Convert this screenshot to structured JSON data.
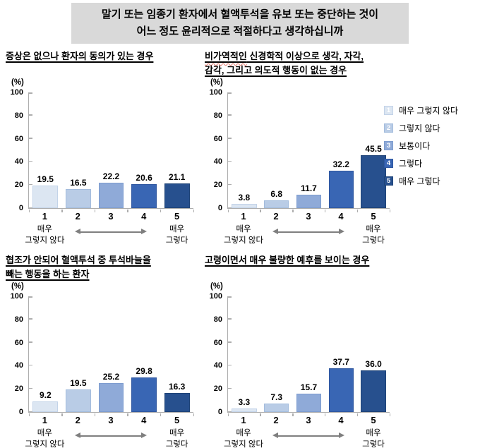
{
  "page_title": {
    "lines": [
      "말기 또는 임종기 환자에서 혈액투석을 유보 또는 중단하는 것이",
      "어느 정도 윤리적으로 적절하다고 생각하십니까"
    ]
  },
  "axis_meta": {
    "unit": "(%)",
    "ticks": [
      0,
      20,
      40,
      60,
      80,
      100
    ],
    "ymax": 100,
    "categories": [
      "1",
      "2",
      "3",
      "4",
      "5"
    ],
    "left_anchor_lines": [
      "매우",
      "그렇지 않다"
    ],
    "right_anchor_lines": [
      "매우",
      "그렇다"
    ],
    "grid": "off",
    "legend_position": "right"
  },
  "legend": {
    "items": [
      {
        "key": "1",
        "label": "매우 그렇지 않다"
      },
      {
        "key": "2",
        "label": "그렇지 않다"
      },
      {
        "key": "3",
        "label": "보통이다"
      },
      {
        "key": "4",
        "label": "그렇다"
      },
      {
        "key": "5",
        "label": "매우 그렇다"
      }
    ]
  },
  "colors": {
    "bars": [
      "#dce6f2",
      "#b9cce6",
      "#8faad8",
      "#3966b4",
      "#27508e"
    ],
    "bar_borders": [
      "#c3d3e8",
      "#a3bcdd",
      "#7d9ccf",
      "#2f57a0",
      "#1e4377"
    ],
    "axis": "#adadad",
    "arrow": "#7f7f7f",
    "title_bg": "#d9d9d9",
    "misspell_underline": "#e8766a"
  },
  "chart_data": [
    {
      "type": "bar",
      "title_lines": [
        "증상은 없으나 환자의 동의가 있는 경우"
      ],
      "categories": [
        "1",
        "2",
        "3",
        "4",
        "5"
      ],
      "values": [
        19.5,
        16.5,
        22.2,
        20.6,
        21.1
      ],
      "value_labels": [
        "19.5",
        "16.5",
        "22.2",
        "20.6",
        "21.1"
      ],
      "ylabel": "(%)",
      "ylim": [
        0,
        100
      ]
    },
    {
      "type": "bar",
      "title_lines": [
        "비가역적인 신경학적 이상으로 생각, 자각,",
        "감각, 그리고 의도적 행동이 없는 경우"
      ],
      "misspell_underline_word": "비가역적인",
      "categories": [
        "1",
        "2",
        "3",
        "4",
        "5"
      ],
      "values": [
        3.8,
        6.8,
        11.7,
        32.2,
        45.5
      ],
      "value_labels": [
        "3.8",
        "6.8",
        "11.7",
        "32.2",
        "45.5"
      ],
      "ylabel": "(%)",
      "ylim": [
        0,
        100
      ]
    },
    {
      "type": "bar",
      "title_lines": [
        "협조가 안되어 혈액투석 중 투석바늘을",
        "빼는 행동을 하는 환자"
      ],
      "categories": [
        "1",
        "2",
        "3",
        "4",
        "5"
      ],
      "values": [
        9.2,
        19.5,
        25.2,
        29.8,
        16.3
      ],
      "value_labels": [
        "9.2",
        "19.5",
        "25.2",
        "29.8",
        "16.3"
      ],
      "ylabel": "(%)",
      "ylim": [
        0,
        100
      ]
    },
    {
      "type": "bar",
      "title_lines": [
        "고령이면서 매우 불량한 예후를 보이는 경우"
      ],
      "categories": [
        "1",
        "2",
        "3",
        "4",
        "5"
      ],
      "values": [
        3.3,
        7.3,
        15.7,
        37.7,
        36.0
      ],
      "value_labels": [
        "3.3",
        "7.3",
        "15.7",
        "37.7",
        "36.0"
      ],
      "ylabel": "(%)",
      "ylim": [
        0,
        100
      ]
    }
  ]
}
